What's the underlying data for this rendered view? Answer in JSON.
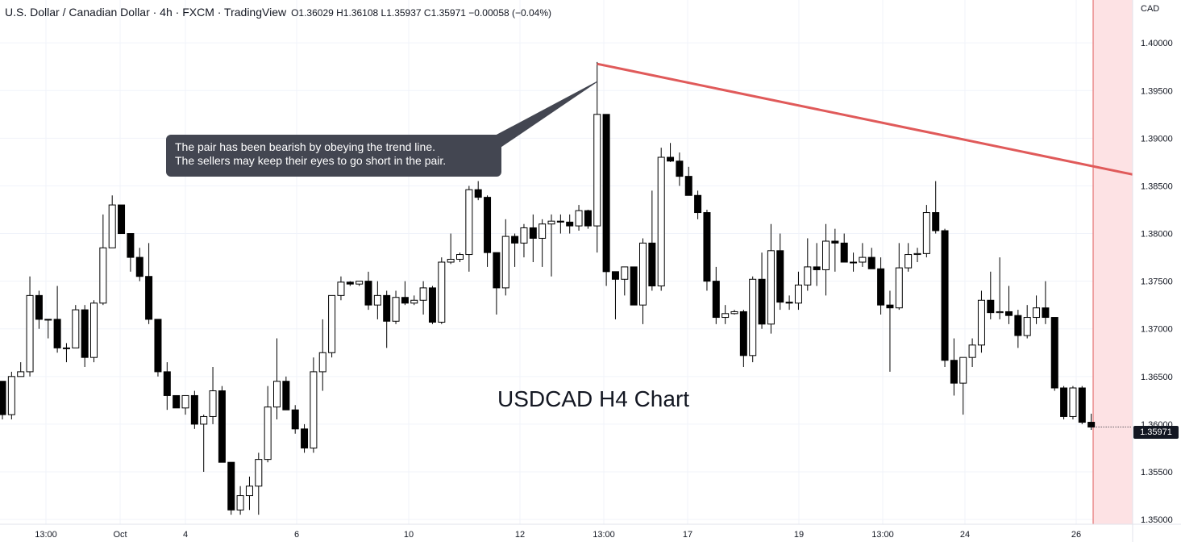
{
  "header": {
    "symbol": "U.S. Dollar / Canadian Dollar · 4h · FXCM · TradingView",
    "ohlc": "O1.36029 H1.36108 L1.35937 C1.35971 −0.00058 (−0.04%)"
  },
  "axis": {
    "currency": "CAD",
    "last_price_label": "1.35971"
  },
  "callout": {
    "line1": "The pair has been bearish by obeying the trend line.",
    "line2": "The sellers may keep their eyes to go short in the pair."
  },
  "chart_title": "USDCAD H4 Chart",
  "colors": {
    "trendline": "#e05a5a",
    "bull_body": "#ffffff",
    "bear_body": "#000000",
    "future_zone": "#fde2e4",
    "grid": "#f0f3fa"
  },
  "chart_data": {
    "type": "candlestick",
    "timeframe": "4h",
    "ylim": [
      1.3495,
      1.4045
    ],
    "y_ticks": [
      "1.35000",
      "1.35500",
      "1.36000",
      "1.36500",
      "1.37000",
      "1.37500",
      "1.38000",
      "1.38500",
      "1.39000",
      "1.39500",
      "1.40000",
      "1.40500"
    ],
    "x_ticks": [
      "13:00",
      "Oct",
      "4",
      "6",
      "10",
      "12",
      "13:00",
      "17",
      "19",
      "13:00",
      "24",
      "26"
    ],
    "last_price": 1.35971,
    "ohlc": [
      [
        1.3645,
        1.3645,
        1.3605,
        1.361
      ],
      [
        1.361,
        1.3655,
        1.3605,
        1.365
      ],
      [
        1.365,
        1.3665,
        1.365,
        1.3655
      ],
      [
        1.3655,
        1.3755,
        1.365,
        1.3735
      ],
      [
        1.3735,
        1.374,
        1.37,
        1.371
      ],
      [
        1.371,
        1.371,
        1.369,
        1.371
      ],
      [
        1.371,
        1.3745,
        1.3675,
        1.368
      ],
      [
        1.368,
        1.3685,
        1.3665,
        1.368
      ],
      [
        1.368,
        1.3725,
        1.368,
        1.372
      ],
      [
        1.372,
        1.3725,
        1.366,
        1.367
      ],
      [
        1.367,
        1.373,
        1.3665,
        1.3727
      ],
      [
        1.3727,
        1.382,
        1.3725,
        1.3785
      ],
      [
        1.3785,
        1.384,
        1.3785,
        1.383
      ],
      [
        1.383,
        1.383,
        1.38,
        1.38
      ],
      [
        1.38,
        1.38,
        1.376,
        1.3775
      ],
      [
        1.3775,
        1.3785,
        1.375,
        1.3755
      ],
      [
        1.3755,
        1.379,
        1.3705,
        1.371
      ],
      [
        1.371,
        1.371,
        1.365,
        1.3655
      ],
      [
        1.3655,
        1.3665,
        1.3615,
        1.363
      ],
      [
        1.363,
        1.363,
        1.362,
        1.3617
      ],
      [
        1.3617,
        1.363,
        1.361,
        1.363
      ],
      [
        1.363,
        1.3635,
        1.3595,
        1.36
      ],
      [
        1.36,
        1.361,
        1.355,
        1.3608
      ],
      [
        1.3608,
        1.366,
        1.36,
        1.3635
      ],
      [
        1.3635,
        1.364,
        1.356,
        1.356
      ],
      [
        1.356,
        1.356,
        1.3505,
        1.351
      ],
      [
        1.351,
        1.3535,
        1.3505,
        1.3525
      ],
      [
        1.3525,
        1.3545,
        1.351,
        1.3535
      ],
      [
        1.3535,
        1.357,
        1.3505,
        1.3563
      ],
      [
        1.3563,
        1.364,
        1.356,
        1.3618
      ],
      [
        1.3618,
        1.369,
        1.3605,
        1.3645
      ],
      [
        1.3645,
        1.365,
        1.3615,
        1.3615
      ],
      [
        1.3615,
        1.362,
        1.359,
        1.3595
      ],
      [
        1.3595,
        1.36,
        1.357,
        1.3575
      ],
      [
        1.3575,
        1.367,
        1.357,
        1.3655
      ],
      [
        1.3655,
        1.371,
        1.3635,
        1.3675
      ],
      [
        1.3675,
        1.3735,
        1.367,
        1.3735
      ],
      [
        1.3735,
        1.3755,
        1.373,
        1.3749
      ],
      [
        1.3749,
        1.375,
        1.3745,
        1.3747
      ],
      [
        1.3747,
        1.375,
        1.3745,
        1.375
      ],
      [
        1.375,
        1.376,
        1.372,
        1.3725
      ],
      [
        1.3725,
        1.375,
        1.371,
        1.3735
      ],
      [
        1.3735,
        1.374,
        1.368,
        1.3708
      ],
      [
        1.3708,
        1.374,
        1.3705,
        1.3733
      ],
      [
        1.3733,
        1.375,
        1.3725,
        1.3727
      ],
      [
        1.3727,
        1.3735,
        1.3725,
        1.373
      ],
      [
        1.373,
        1.375,
        1.3715,
        1.3743
      ],
      [
        1.3743,
        1.3745,
        1.3705,
        1.3707
      ],
      [
        1.3707,
        1.3775,
        1.3705,
        1.377
      ],
      [
        1.377,
        1.38,
        1.3768,
        1.3773
      ],
      [
        1.3773,
        1.378,
        1.377,
        1.3778
      ],
      [
        1.3778,
        1.385,
        1.376,
        1.3846
      ],
      [
        1.3846,
        1.3855,
        1.3835,
        1.3838
      ],
      [
        1.3838,
        1.384,
        1.3765,
        1.378
      ],
      [
        1.378,
        1.378,
        1.3715,
        1.3743
      ],
      [
        1.3743,
        1.3815,
        1.3735,
        1.3797
      ],
      [
        1.3797,
        1.38,
        1.3765,
        1.379
      ],
      [
        1.379,
        1.381,
        1.3775,
        1.3806
      ],
      [
        1.3806,
        1.382,
        1.377,
        1.3795
      ],
      [
        1.3795,
        1.3815,
        1.3765,
        1.381
      ],
      [
        1.381,
        1.382,
        1.3755,
        1.3813
      ],
      [
        1.3813,
        1.382,
        1.38,
        1.3812
      ],
      [
        1.3812,
        1.382,
        1.38,
        1.3808
      ],
      [
        1.3808,
        1.383,
        1.3803,
        1.3824
      ],
      [
        1.3824,
        1.3825,
        1.3805,
        1.3808
      ],
      [
        1.3808,
        1.398,
        1.378,
        1.3925
      ],
      [
        1.3925,
        1.3925,
        1.3745,
        1.376
      ],
      [
        1.376,
        1.376,
        1.371,
        1.3752
      ],
      [
        1.3752,
        1.3765,
        1.3735,
        1.3765
      ],
      [
        1.3765,
        1.3765,
        1.3725,
        1.3725
      ],
      [
        1.3725,
        1.3795,
        1.3705,
        1.379
      ],
      [
        1.379,
        1.3845,
        1.374,
        1.3745
      ],
      [
        1.3745,
        1.389,
        1.374,
        1.388
      ],
      [
        1.388,
        1.3895,
        1.3875,
        1.3876
      ],
      [
        1.3876,
        1.3885,
        1.385,
        1.386
      ],
      [
        1.386,
        1.387,
        1.384,
        1.384
      ],
      [
        1.384,
        1.3845,
        1.3815,
        1.3822
      ],
      [
        1.3822,
        1.3825,
        1.374,
        1.375
      ],
      [
        1.375,
        1.3765,
        1.3705,
        1.3712
      ],
      [
        1.3712,
        1.3725,
        1.3705,
        1.3716
      ],
      [
        1.3716,
        1.372,
        1.3715,
        1.3718
      ],
      [
        1.3718,
        1.372,
        1.366,
        1.3672
      ],
      [
        1.3672,
        1.3755,
        1.3665,
        1.3752
      ],
      [
        1.3752,
        1.378,
        1.37,
        1.3705
      ],
      [
        1.3705,
        1.381,
        1.3695,
        1.3782
      ],
      [
        1.3782,
        1.38,
        1.372,
        1.3728
      ],
      [
        1.3728,
        1.3735,
        1.372,
        1.3727
      ],
      [
        1.3727,
        1.376,
        1.372,
        1.3746
      ],
      [
        1.3746,
        1.3795,
        1.374,
        1.3765
      ],
      [
        1.3765,
        1.379,
        1.3745,
        1.3762
      ],
      [
        1.3762,
        1.381,
        1.3735,
        1.3792
      ],
      [
        1.3792,
        1.3805,
        1.376,
        1.379
      ],
      [
        1.379,
        1.38,
        1.377,
        1.377
      ],
      [
        1.377,
        1.378,
        1.376,
        1.377
      ],
      [
        1.377,
        1.379,
        1.3765,
        1.3775
      ],
      [
        1.3775,
        1.3785,
        1.3765,
        1.3763
      ],
      [
        1.3763,
        1.3775,
        1.3715,
        1.3725
      ],
      [
        1.3725,
        1.374,
        1.3655,
        1.3722
      ],
      [
        1.3722,
        1.379,
        1.372,
        1.3764
      ],
      [
        1.3764,
        1.379,
        1.376,
        1.3778
      ],
      [
        1.3778,
        1.3785,
        1.377,
        1.3779
      ],
      [
        1.3779,
        1.383,
        1.3775,
        1.3822
      ],
      [
        1.3822,
        1.3855,
        1.38,
        1.3803
      ],
      [
        1.3803,
        1.3805,
        1.366,
        1.3667
      ],
      [
        1.3667,
        1.369,
        1.363,
        1.3643
      ],
      [
        1.3643,
        1.367,
        1.361,
        1.367
      ],
      [
        1.367,
        1.369,
        1.366,
        1.3683
      ],
      [
        1.3683,
        1.374,
        1.3675,
        1.373
      ],
      [
        1.373,
        1.376,
        1.371,
        1.3717
      ],
      [
        1.3717,
        1.3775,
        1.371,
        1.3718
      ],
      [
        1.3718,
        1.3745,
        1.3705,
        1.3714
      ],
      [
        1.3714,
        1.372,
        1.368,
        1.3693
      ],
      [
        1.3693,
        1.3725,
        1.369,
        1.3712
      ],
      [
        1.3712,
        1.3735,
        1.3705,
        1.3722
      ],
      [
        1.3722,
        1.375,
        1.3705,
        1.3712
      ],
      [
        1.3712,
        1.3712,
        1.3635,
        1.3638
      ],
      [
        1.3638,
        1.364,
        1.3605,
        1.3608
      ],
      [
        1.3608,
        1.364,
        1.3605,
        1.3638
      ],
      [
        1.3638,
        1.364,
        1.36,
        1.3602
      ],
      [
        1.3602,
        1.3611,
        1.3594,
        1.3597
      ]
    ],
    "trendline": {
      "from_index": 65,
      "from_price": 1.3978,
      "to_index": 122,
      "to_price": 1.3865
    },
    "annotation": "The pair has been bearish by obeying the trend line. The sellers may keep their eyes to go short in the pair."
  }
}
